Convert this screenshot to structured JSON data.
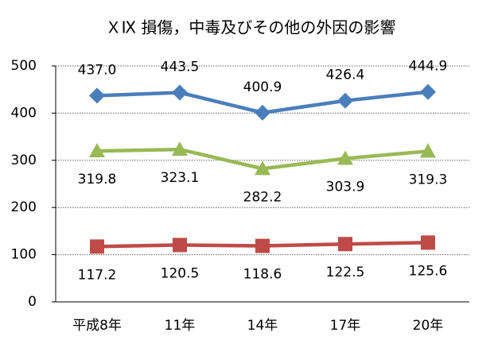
{
  "chart_data": {
    "type": "line",
    "title": "ＸⅨ 損傷，中毒及びその他の外因の影響",
    "categories": [
      "平成8年",
      "11年",
      "14年",
      "17年",
      "20年"
    ],
    "series": [
      {
        "color": "#4a7ebb",
        "marker": "diamond",
        "values": [
          437.0,
          443.5,
          400.9,
          426.4,
          444.9
        ],
        "value_labels": [
          "437.0",
          "443.5",
          "400.9",
          "426.4",
          "444.9"
        ]
      },
      {
        "color": "#98b954",
        "marker": "triangle",
        "values": [
          319.8,
          323.1,
          282.2,
          303.9,
          319.3
        ],
        "value_labels": [
          "319.8",
          "323.1",
          "282.2",
          "303.9",
          "319.3"
        ]
      },
      {
        "color": "#be4b48",
        "marker": "square",
        "values": [
          117.2,
          120.5,
          118.6,
          122.5,
          125.6
        ],
        "value_labels": [
          "117.2",
          "120.5",
          "118.6",
          "122.5",
          "125.6"
        ]
      }
    ],
    "ylim": [
      0,
      500
    ],
    "yticks": [
      0,
      100,
      200,
      300,
      400,
      500
    ],
    "grid": true
  }
}
